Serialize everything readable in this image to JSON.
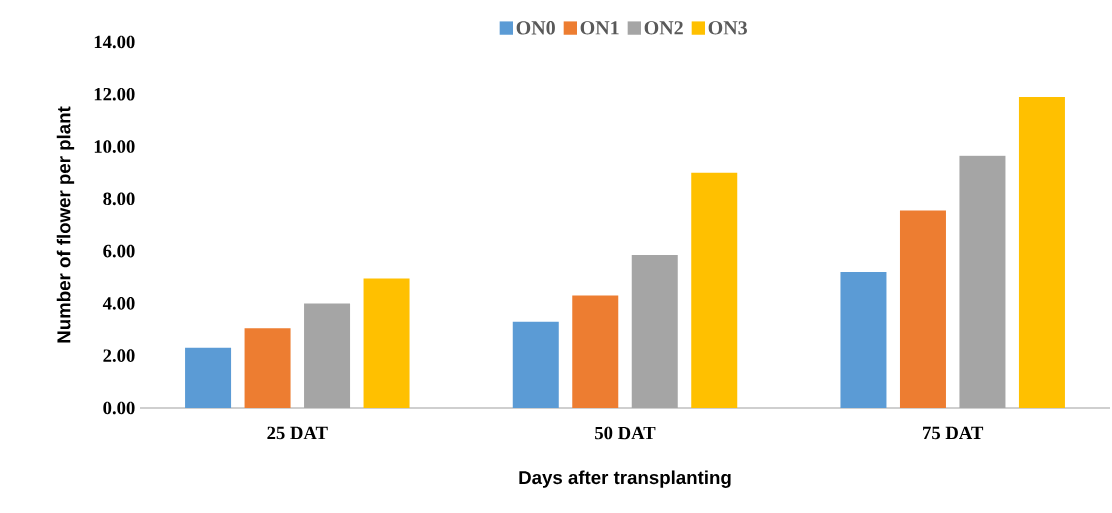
{
  "chart_data": {
    "type": "bar",
    "xlabel": "Days after transplanting",
    "ylabel": "Number of flower per plant",
    "categories": [
      "25 DAT",
      "50 DAT",
      "75 DAT"
    ],
    "series": [
      {
        "name": "ON0",
        "color": "#5b9bd5",
        "values": [
          2.3,
          3.3,
          5.2
        ]
      },
      {
        "name": "ON1",
        "color": "#ed7d31",
        "values": [
          3.05,
          4.3,
          7.55
        ]
      },
      {
        "name": "ON2",
        "color": "#a5a5a5",
        "values": [
          4.0,
          5.85,
          9.65
        ]
      },
      {
        "name": "ON3",
        "color": "#ffc000",
        "values": [
          4.95,
          9.0,
          11.9
        ]
      }
    ],
    "ylim": [
      0,
      14
    ],
    "yticks": [
      {
        "value": 0,
        "label": "0.00"
      },
      {
        "value": 2,
        "label": "2.00"
      },
      {
        "value": 4,
        "label": "4.00"
      },
      {
        "value": 6,
        "label": "6.00"
      },
      {
        "value": 8,
        "label": "8.00"
      },
      {
        "value": 10,
        "label": "10.00"
      },
      {
        "value": 12,
        "label": "12.00"
      },
      {
        "value": 14,
        "label": "14.00"
      }
    ],
    "grid": false,
    "legend": "top"
  }
}
